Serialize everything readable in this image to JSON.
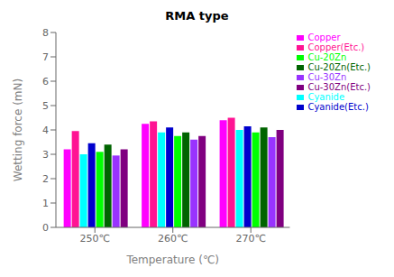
{
  "chart_data": {
    "type": "bar",
    "title": "RMA type",
    "xlabel": "Temperature (℃)",
    "ylabel": "Wetting force (mN)",
    "categories": [
      "250℃",
      "260℃",
      "270℃"
    ],
    "series": [
      {
        "name": "Copper",
        "color": "#FF00FF",
        "values": [
          3.2,
          4.25,
          4.4
        ]
      },
      {
        "name": "Copper(Etc.)",
        "color": "#FF1493",
        "values": [
          3.95,
          4.35,
          4.5
        ]
      },
      {
        "name": "Cyanide",
        "color": "#00FFFF",
        "values": [
          3.0,
          3.9,
          4.0
        ]
      },
      {
        "name": "Cyanide(Etc.)",
        "color": "#0000CD",
        "values": [
          3.45,
          4.1,
          4.15
        ]
      },
      {
        "name": "Cu-20Zn",
        "color": "#00FF00",
        "values": [
          3.1,
          3.75,
          3.9
        ]
      },
      {
        "name": "Cu-20Zn(Etc.)",
        "color": "#006400",
        "values": [
          3.4,
          3.9,
          4.1
        ]
      },
      {
        "name": "Cu-30Zn",
        "color": "#9933FF",
        "values": [
          2.95,
          3.6,
          3.7
        ]
      },
      {
        "name": "Cu-30Zn(Etc.)",
        "color": "#800080",
        "values": [
          3.2,
          3.75,
          4.0
        ]
      }
    ],
    "ylim": [
      0,
      8
    ],
    "yticks": [
      0,
      1,
      2,
      3,
      4,
      5,
      6,
      7,
      8
    ],
    "grid": false,
    "legend": "upper right"
  }
}
